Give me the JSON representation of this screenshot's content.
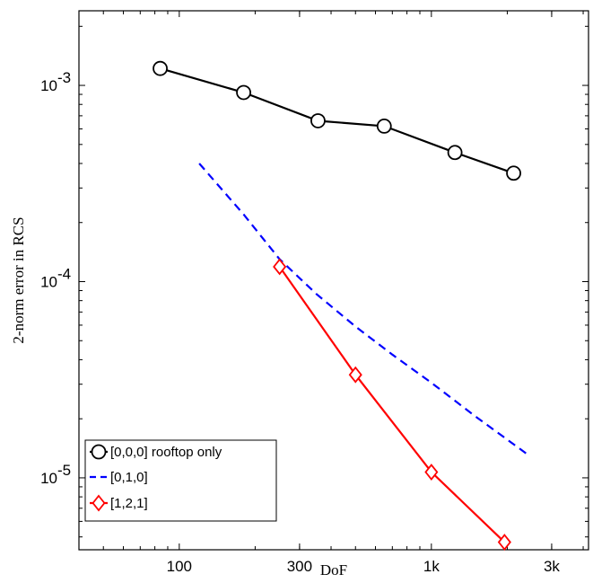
{
  "chart_data": {
    "type": "line",
    "title": "",
    "xlabel": "DoF",
    "ylabel": "2-norm error in RCS",
    "xscale": "log",
    "yscale": "log",
    "xlim": [
      40,
      4200
    ],
    "ylim": [
      4.3e-06,
      0.0024
    ],
    "grid": false,
    "legend_position": "bottom-left",
    "x_ticks": [
      {
        "value": 100,
        "label": "100"
      },
      {
        "value": 300,
        "label": "300"
      },
      {
        "value": 1000,
        "label": "1k"
      },
      {
        "value": 3000,
        "label": "3k"
      }
    ],
    "y_ticks": [
      {
        "value": 0.001,
        "base": "10",
        "exp": "-3"
      },
      {
        "value": 0.0001,
        "base": "10",
        "exp": "-4"
      },
      {
        "value": 1e-05,
        "base": "10",
        "exp": "-5"
      }
    ],
    "series": [
      {
        "name": "[0,0,0] rooftop only",
        "color": "#000000",
        "line_style": "solid",
        "marker": "circle",
        "x": [
          84,
          180,
          355,
          650,
          1240,
          2120
        ],
        "y": [
          0.00122,
          0.00092,
          0.00066,
          0.00062,
          0.000455,
          0.000357
        ]
      },
      {
        "name": "[0,1,0]",
        "color": "#0000ff",
        "line_style": "dashed",
        "marker": "none",
        "x": [
          120,
          180,
          250,
          350,
          500,
          700,
          1000,
          1500,
          2400
        ],
        "y": [
          0.0004,
          0.00022,
          0.00013,
          8.65e-05,
          5.9e-05,
          4.25e-05,
          3.05e-05,
          2.05e-05,
          1.32e-05
        ]
      },
      {
        "name": "[1,2,1]",
        "color": "#ff0000",
        "line_style": "solid",
        "marker": "diamond",
        "x": [
          250,
          500,
          1000,
          1950
        ],
        "y": [
          0.000119,
          3.35e-05,
          1.07e-05,
          4.7e-06
        ]
      }
    ]
  }
}
